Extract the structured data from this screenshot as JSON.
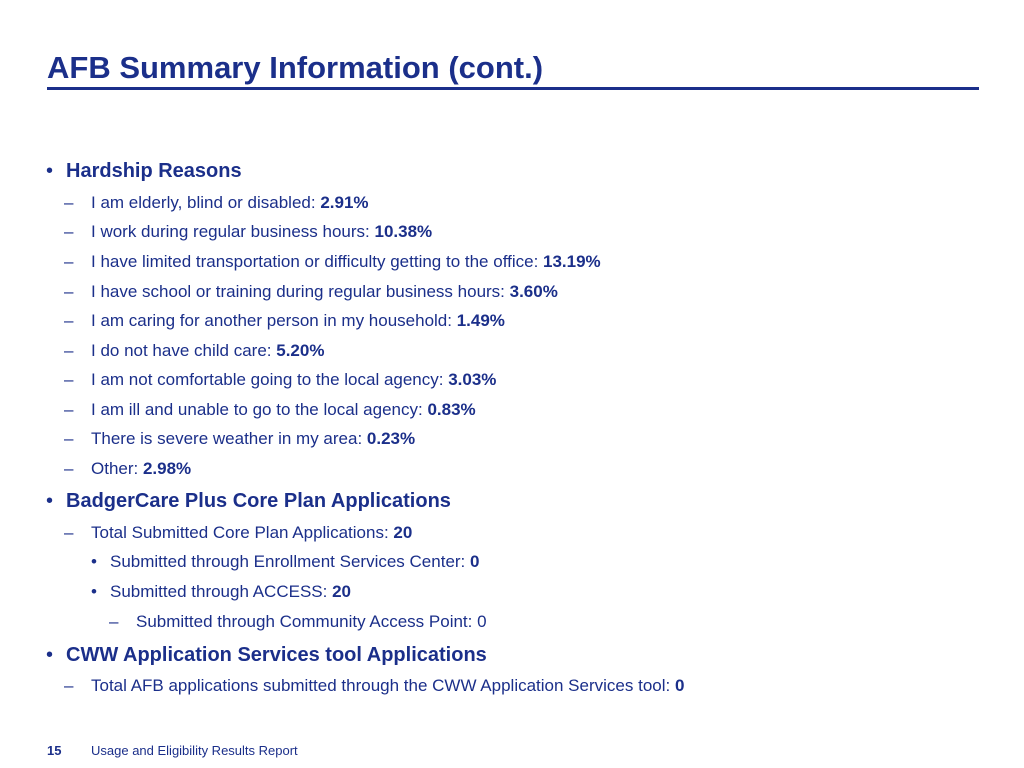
{
  "title": "AFB Summary Information (cont.)",
  "sections": {
    "hardship": {
      "heading": "Hardship Reasons",
      "items": [
        {
          "label": "I am elderly, blind or disabled: ",
          "value": "2.91%"
        },
        {
          "label": "I work during regular business hours: ",
          "value": "10.38%"
        },
        {
          "label": "I have limited transportation or difficulty getting to the office: ",
          "value": "13.19%"
        },
        {
          "label": "I have school or training during regular business hours: ",
          "value": "3.60%"
        },
        {
          "label": "I am caring for another person in my household: ",
          "value": "1.49%"
        },
        {
          "label": "I do not have child care: ",
          "value": "5.20%"
        },
        {
          "label": "I am not comfortable going to the local agency: ",
          "value": "3.03%"
        },
        {
          "label": "I am ill and unable to go to the local agency: ",
          "value": "0.83%"
        },
        {
          "label": "There is severe weather in my area: ",
          "value": "0.23%"
        },
        {
          "label": "Other: ",
          "value": "2.98%"
        }
      ]
    },
    "core_plan": {
      "heading": "BadgerCare Plus Core Plan Applications",
      "total": {
        "label": "Total Submitted Core Plan Applications: ",
        "value": "20"
      },
      "esc": {
        "label": "Submitted through Enrollment Services Center: ",
        "value": "0"
      },
      "access": {
        "label": "Submitted through ACCESS: ",
        "value": "20"
      },
      "cap": {
        "label": "Submitted through Community Access Point: 0"
      }
    },
    "cww": {
      "heading": "CWW Application Services tool Applications",
      "total": {
        "label": "Total AFB applications submitted through the CWW Application Services tool: ",
        "value": "0"
      }
    }
  },
  "markers": {
    "bullet": "•",
    "dash": "–"
  },
  "footer": {
    "page_number": "15",
    "report_name": "Usage and Eligibility Results Report"
  }
}
